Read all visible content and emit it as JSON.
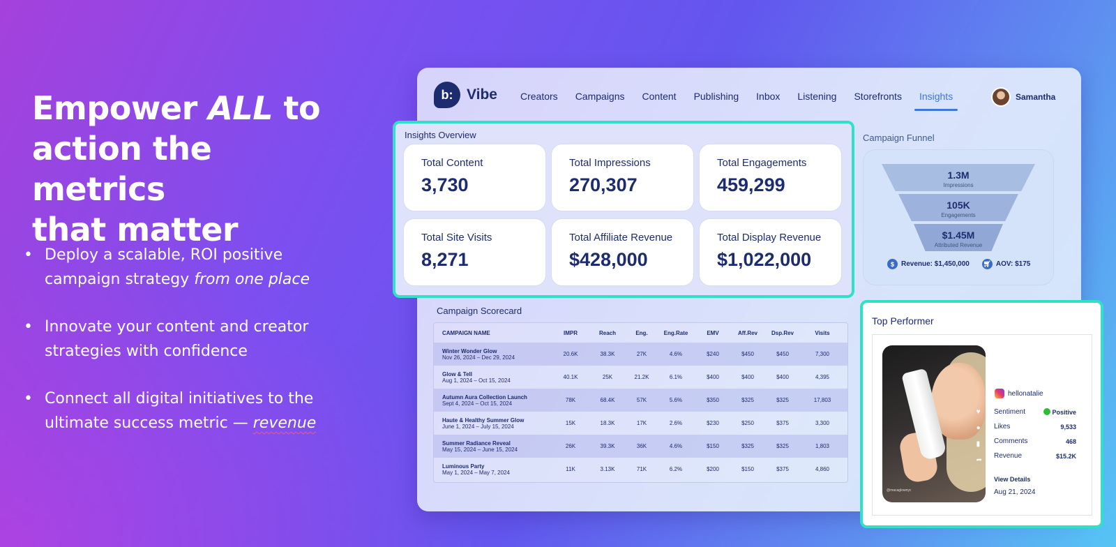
{
  "hero": {
    "line1_pre": "Empower ",
    "line1_em": "ALL",
    "line1_post": " to",
    "line2": "action the metrics",
    "line3": "that matter"
  },
  "bullets": [
    {
      "text": "Deploy a scalable, ROI positive campaign strategy ",
      "em": "from one place"
    },
    {
      "text": "Innovate your content and creator strategies with confidence"
    },
    {
      "text": "Connect all digital initiatives to the ultimate success metric — ",
      "em": "revenue"
    }
  ],
  "app": {
    "logo_glyph": "b:",
    "logo_text": "Vibe",
    "nav": [
      "Creators",
      "Campaigns",
      "Content",
      "Publishing",
      "Inbox",
      "Listening",
      "Storefronts",
      "Insights"
    ],
    "active_nav": "Insights",
    "user": "Samantha"
  },
  "overview": {
    "title": "Insights Overview",
    "cards": [
      {
        "label": "Total Content",
        "value": "3,730"
      },
      {
        "label": "Total Impressions",
        "value": "270,307"
      },
      {
        "label": "Total Engagements",
        "value": "459,299"
      },
      {
        "label": "Total Site Visits",
        "value": "8,271"
      },
      {
        "label": "Total Affiliate Revenue",
        "value": "$428,000"
      },
      {
        "label": "Total Display Revenue",
        "value": "$1,022,000"
      }
    ]
  },
  "funnel": {
    "title": "Campaign Funnel",
    "steps": [
      {
        "value": "1.3M",
        "label": "Impressions"
      },
      {
        "value": "105K",
        "label": "Engagements"
      },
      {
        "value": "$1.45M",
        "label": "Attributed Revenue"
      }
    ],
    "revenue": "Revenue: $1,450,000",
    "aov": "AOV: $175"
  },
  "scorecard": {
    "title": "Campaign Scorecard",
    "columns": [
      "CAMPAIGN NAME",
      "IMPR",
      "Reach",
      "Eng.",
      "Eng.Rate",
      "EMV",
      "Aff.Rev",
      "Dsp.Rev",
      "Visits"
    ],
    "rows": [
      {
        "name": "Winter Wonder Glow",
        "dates": "Nov 26, 2024 – Dec 29, 2024",
        "cells": [
          "20.6K",
          "38.3K",
          "27K",
          "4.6%",
          "$240",
          "$450",
          "$450",
          "7,300"
        ]
      },
      {
        "name": "Glow & Tell",
        "dates": "Aug 1, 2024 – Oct 15, 2024",
        "cells": [
          "40.1K",
          "25K",
          "21.2K",
          "6.1%",
          "$400",
          "$400",
          "$400",
          "4,395"
        ]
      },
      {
        "name": "Autumn Aura Collection Launch",
        "dates": "Sept 4, 2024 – Oct 15, 2024",
        "cells": [
          "78K",
          "68.4K",
          "57K",
          "5.6%",
          "$350",
          "$325",
          "$325",
          "17,803"
        ]
      },
      {
        "name": "Haute & Healthy Summer Glow",
        "dates": "June 1, 2024 – July 15, 2024",
        "cells": [
          "15K",
          "18.3K",
          "17K",
          "2.6%",
          "$230",
          "$250",
          "$375",
          "3,300"
        ]
      },
      {
        "name": "Summer Radiance Reveal",
        "dates": "May 15, 2024 – June 15, 2024",
        "cells": [
          "26K",
          "39.3K",
          "36K",
          "4.6%",
          "$150",
          "$325",
          "$325",
          "1,803"
        ]
      },
      {
        "name": "Luminous Party",
        "dates": "May 1, 2024 – May 7, 2024",
        "cells": [
          "11K",
          "3.13K",
          "71K",
          "6.2%",
          "$200",
          "$150",
          "$375",
          "4,860"
        ]
      }
    ]
  },
  "top": {
    "title": "Top Performer",
    "handle": "hellonatalie",
    "stats": [
      {
        "label": "Sentiment",
        "value": "Positive"
      },
      {
        "label": "Likes",
        "value": "9,533"
      },
      {
        "label": "Comments",
        "value": "468"
      },
      {
        "label": "Revenue",
        "value": "$15.2K"
      }
    ],
    "view": "View Details",
    "date": "Aug 21, 2024",
    "photo_caption": "@macaglownyc"
  },
  "colors": {
    "highlight": "#32dfc9",
    "navy": "#1d2c6e",
    "active": "#3f78d6"
  }
}
